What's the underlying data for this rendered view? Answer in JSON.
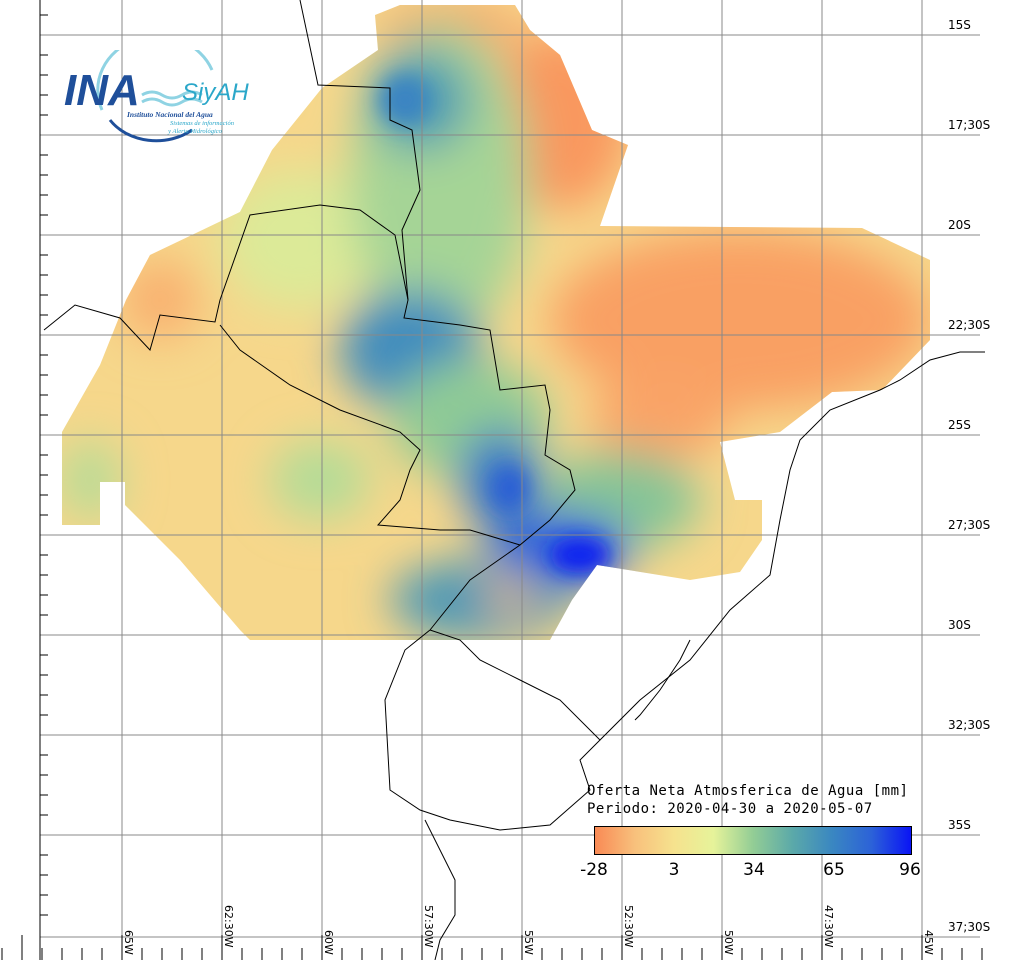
{
  "logo": {
    "main": "INA",
    "secondary": "SiyAH",
    "subtitle1": "Instituto Nacional del Agua",
    "subtitle2": "Sistemas de información",
    "subtitle3": "y Alerta Hidrológico"
  },
  "title": {
    "line1": "Oferta Neta Atmosferica de Agua [mm]",
    "line2": "Periodo: 2020-04-30 a 2020-05-07"
  },
  "colorbar": {
    "labels": [
      "-28",
      "3",
      "34",
      "65",
      "96"
    ],
    "min": -28,
    "max": 96,
    "colors": [
      "#f98a55",
      "#f8c07c",
      "#f6e28e",
      "#e6f39a",
      "#93cd95",
      "#5ba9a9",
      "#3a87c1",
      "#2c62d8",
      "#0a14f5"
    ]
  },
  "lat_labels": [
    "15S",
    "17;30S",
    "20S",
    "22;30S",
    "25S",
    "27;30S",
    "30S",
    "32;30S",
    "35S",
    "37;30S"
  ],
  "lon_labels": [
    "65W",
    "62:30W",
    "60W",
    "57:30W",
    "55W",
    "52:30W",
    "50W",
    "47:30W",
    "45W"
  ]
}
